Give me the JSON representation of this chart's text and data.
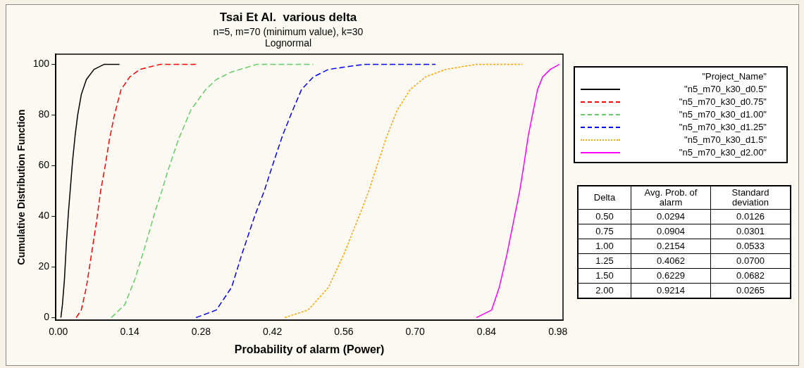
{
  "chart_data": {
    "type": "line",
    "title": "Tsai Et Al.  various delta",
    "subtitle": "n=5, m=70 (minimum value), k=30\nLognormal",
    "xlabel": "Probability of alarm (Power)",
    "ylabel": "Cumulative Distribution Function",
    "legend_title": "\"Project_Name\"",
    "legend": "top right",
    "grid": false,
    "marker": "none",
    "xlim": [
      -0.005,
      0.99
    ],
    "ylim": [
      -1,
      104
    ],
    "xticks": [
      {
        "value": 0,
        "label": "0.00"
      },
      {
        "value": 0.14,
        "label": "0.14"
      },
      {
        "value": 0.28,
        "label": "0.28"
      },
      {
        "value": 0.42,
        "label": "0.42"
      },
      {
        "value": 0.56,
        "label": "0.56"
      },
      {
        "value": 0.7,
        "label": "0.70"
      },
      {
        "value": 0.84,
        "label": "0.84"
      },
      {
        "value": 0.98,
        "label": "0.98"
      }
    ],
    "yticks": [
      0,
      20,
      40,
      60,
      80,
      100
    ],
    "series": [
      {
        "name": "\"n5_m70_k30_d0.5\"",
        "color": "#000000",
        "line_style": "solid",
        "x": [
          0.005,
          0.008,
          0.012,
          0.016,
          0.02,
          0.024,
          0.028,
          0.033,
          0.038,
          0.045,
          0.055,
          0.07,
          0.09,
          0.12
        ],
        "values": [
          0,
          5,
          15,
          30,
          42,
          52,
          62,
          72,
          80,
          88,
          94,
          98,
          100,
          100
        ]
      },
      {
        "name": "\"n5_m70_k30_d0.75\"",
        "color": "#ff0000",
        "line_style": "dashed",
        "x": [
          0.035,
          0.045,
          0.055,
          0.065,
          0.075,
          0.083,
          0.092,
          0.1,
          0.11,
          0.123,
          0.14,
          0.16,
          0.2,
          0.27
        ],
        "values": [
          0,
          3,
          12,
          25,
          38,
          50,
          60,
          70,
          80,
          90,
          95,
          98,
          100,
          100
        ]
      },
      {
        "name": "\"n5_m70_k30_d1.00\"",
        "color": "#66cc66",
        "line_style": "dashed",
        "x": [
          0.104,
          0.13,
          0.15,
          0.17,
          0.19,
          0.203,
          0.215,
          0.235,
          0.26,
          0.289,
          0.31,
          0.34,
          0.39,
          0.5
        ],
        "values": [
          0,
          5,
          15,
          28,
          42,
          50,
          58,
          70,
          82,
          90,
          94,
          97,
          100,
          100
        ]
      },
      {
        "name": "\"n5_m70_k30_d1.25\"",
        "color": "#0000ff",
        "line_style": "dashed",
        "x": [
          0.27,
          0.31,
          0.34,
          0.36,
          0.385,
          0.404,
          0.42,
          0.44,
          0.46,
          0.477,
          0.5,
          0.53,
          0.6,
          0.74
        ],
        "values": [
          0,
          3,
          12,
          25,
          40,
          50,
          60,
          72,
          82,
          90,
          95,
          98,
          100,
          100
        ]
      },
      {
        "name": "\"n5_m70_k30_d1.5\"",
        "color": "#ffa500",
        "line_style": "dotted",
        "x": [
          0.444,
          0.49,
          0.53,
          0.56,
          0.59,
          0.609,
          0.625,
          0.645,
          0.665,
          0.69,
          0.72,
          0.76,
          0.82,
          0.91
        ],
        "values": [
          0,
          3,
          12,
          25,
          40,
          50,
          60,
          72,
          82,
          90,
          95,
          98,
          100,
          100
        ]
      },
      {
        "name": "\"n5_m70_k30_d2.00\"",
        "color": "#ff00ff",
        "line_style": "solid",
        "x": [
          0.82,
          0.85,
          0.865,
          0.88,
          0.895,
          0.905,
          0.913,
          0.922,
          0.932,
          0.94,
          0.95,
          0.965,
          0.983
        ],
        "values": [
          0,
          3,
          12,
          25,
          40,
          50,
          60,
          72,
          82,
          90,
          95,
          98,
          100
        ]
      }
    ],
    "annotations": [
      "Delta",
      "Avg. Prob. of alarm",
      "Standard deviation",
      "0.50",
      "0.0294",
      "0.0126",
      "0.75",
      "0.0904",
      "0.0301",
      "1.00",
      "0.2154",
      "0.0533",
      "1.25",
      "0.4062",
      "0.0700",
      "1.50",
      "0.6229",
      "0.0682",
      "2.00",
      "0.9214",
      "0.0265"
    ]
  }
}
